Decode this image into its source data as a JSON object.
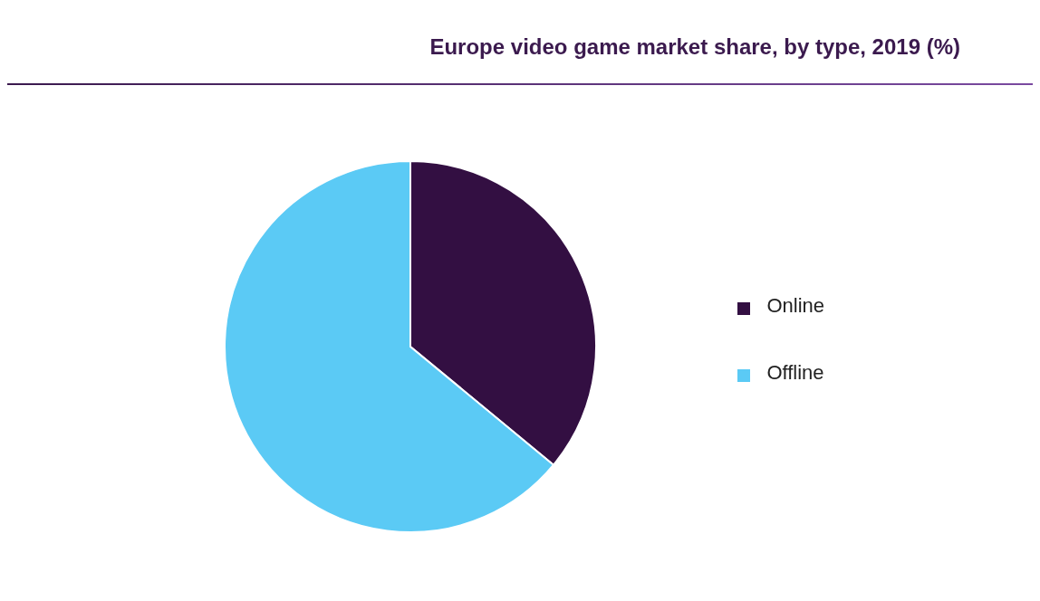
{
  "chart_data": {
    "type": "pie",
    "title": "Europe video game market share, by type, 2019 (%)",
    "categories": [
      "Online",
      "Offline"
    ],
    "values": [
      36,
      64
    ],
    "colors": [
      "#330f42",
      "#5bcaf5"
    ],
    "legend": "right"
  }
}
